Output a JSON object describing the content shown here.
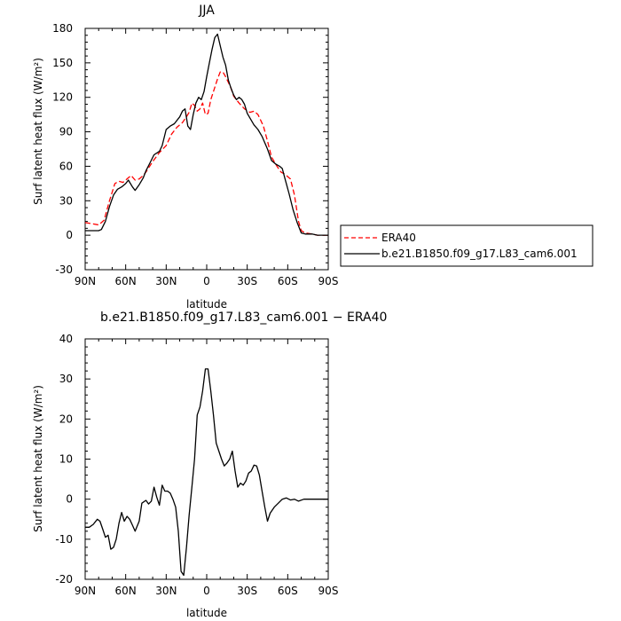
{
  "chart_data": [
    {
      "type": "line",
      "title": "JJA",
      "xlabel": "latitude",
      "ylabel": "Surf latent heat flux (W/m²)",
      "xlim": [
        90,
        -90
      ],
      "ylim": [
        -30,
        180
      ],
      "x_ticks": [
        {
          "value": 90,
          "label": "90N"
        },
        {
          "value": 60,
          "label": "60N"
        },
        {
          "value": 30,
          "label": "30N"
        },
        {
          "value": 0,
          "label": "0"
        },
        {
          "value": -30,
          "label": "30S"
        },
        {
          "value": -60,
          "label": "60S"
        },
        {
          "value": -90,
          "label": "90S"
        }
      ],
      "y_ticks": [
        -30,
        0,
        30,
        60,
        90,
        120,
        150,
        180
      ],
      "legend": "right, outside plot",
      "series": [
        {
          "name": "ERA40",
          "color": "#ff0000",
          "dash": "dashed",
          "points": [
            [
              90,
              11
            ],
            [
              85,
              10
            ],
            [
              80,
              9
            ],
            [
              76,
              13
            ],
            [
              72,
              30
            ],
            [
              68,
              45
            ],
            [
              65,
              47
            ],
            [
              62,
              46
            ],
            [
              58,
              50
            ],
            [
              56,
              52
            ],
            [
              53,
              48
            ],
            [
              50,
              49
            ],
            [
              47,
              52
            ],
            [
              45,
              55
            ],
            [
              40,
              64
            ],
            [
              35,
              72
            ],
            [
              30,
              78
            ],
            [
              26,
              88
            ],
            [
              22,
              94
            ],
            [
              18,
              98
            ],
            [
              15,
              103
            ],
            [
              13,
              107
            ],
            [
              11,
              115
            ],
            [
              9,
              113
            ],
            [
              7,
              108
            ],
            [
              5,
              110
            ],
            [
              3,
              115
            ],
            [
              1,
              105
            ],
            [
              -1,
              106
            ],
            [
              -3,
              118
            ],
            [
              -5,
              125
            ],
            [
              -8,
              136
            ],
            [
              -10,
              142
            ],
            [
              -12,
              142
            ],
            [
              -14,
              138
            ],
            [
              -16,
              133
            ],
            [
              -18,
              128
            ],
            [
              -20,
              121
            ],
            [
              -24,
              115
            ],
            [
              -28,
              110
            ],
            [
              -32,
              107
            ],
            [
              -35,
              108
            ],
            [
              -38,
              105
            ],
            [
              -42,
              95
            ],
            [
              -45,
              82
            ],
            [
              -48,
              68
            ],
            [
              -52,
              60
            ],
            [
              -55,
              55
            ],
            [
              -58,
              53
            ],
            [
              -62,
              49
            ],
            [
              -65,
              35
            ],
            [
              -68,
              12
            ],
            [
              -70,
              4
            ],
            [
              -73,
              2
            ],
            [
              -78,
              1
            ],
            [
              -82,
              0
            ],
            [
              -86,
              0
            ],
            [
              -90,
              0
            ]
          ]
        },
        {
          "name": "b.e21.B1850.f09_g17.L83_cam6.001",
          "color": "#000000",
          "dash": "solid",
          "points": [
            [
              90,
              4
            ],
            [
              85,
              4
            ],
            [
              80,
              4
            ],
            [
              78,
              5
            ],
            [
              75,
              12
            ],
            [
              72,
              25
            ],
            [
              69,
              35
            ],
            [
              66,
              40
            ],
            [
              63,
              42
            ],
            [
              60,
              45
            ],
            [
              58,
              48
            ],
            [
              55,
              42
            ],
            [
              53,
              39
            ],
            [
              50,
              44
            ],
            [
              47,
              50
            ],
            [
              45,
              56
            ],
            [
              42,
              63
            ],
            [
              39,
              70
            ],
            [
              35,
              73
            ],
            [
              33,
              78
            ],
            [
              30,
              92
            ],
            [
              27,
              95
            ],
            [
              24,
              97
            ],
            [
              22,
              100
            ],
            [
              20,
              103
            ],
            [
              18,
              108
            ],
            [
              16,
              110
            ],
            [
              14,
              95
            ],
            [
              12,
              92
            ],
            [
              10,
              105
            ],
            [
              8,
              115
            ],
            [
              6,
              120
            ],
            [
              4,
              118
            ],
            [
              2,
              125
            ],
            [
              0,
              138
            ],
            [
              -2,
              150
            ],
            [
              -4,
              162
            ],
            [
              -6,
              172
            ],
            [
              -8,
              175
            ],
            [
              -10,
              165
            ],
            [
              -12,
              155
            ],
            [
              -14,
              148
            ],
            [
              -16,
              135
            ],
            [
              -18,
              128
            ],
            [
              -20,
              122
            ],
            [
              -22,
              118
            ],
            [
              -24,
              120
            ],
            [
              -26,
              118
            ],
            [
              -28,
              114
            ],
            [
              -30,
              106
            ],
            [
              -35,
              96
            ],
            [
              -38,
              92
            ],
            [
              -41,
              86
            ],
            [
              -45,
              75
            ],
            [
              -48,
              65
            ],
            [
              -51,
              62
            ],
            [
              -54,
              60
            ],
            [
              -56,
              58
            ],
            [
              -58,
              49
            ],
            [
              -61,
              36
            ],
            [
              -64,
              22
            ],
            [
              -67,
              11
            ],
            [
              -70,
              2
            ],
            [
              -73,
              1
            ],
            [
              -78,
              1
            ],
            [
              -82,
              0
            ],
            [
              -86,
              0
            ],
            [
              -90,
              0
            ]
          ]
        }
      ]
    },
    {
      "type": "line",
      "title": "b.e21.B1850.f09_g17.L83_cam6.001 − ERA40",
      "xlabel": "latitude",
      "ylabel": "Surf latent heat flux (W/m²)",
      "xlim": [
        90,
        -90
      ],
      "ylim": [
        -20,
        40
      ],
      "x_ticks": [
        {
          "value": 90,
          "label": "90N"
        },
        {
          "value": 60,
          "label": "60N"
        },
        {
          "value": 30,
          "label": "30N"
        },
        {
          "value": 0,
          "label": "0"
        },
        {
          "value": -30,
          "label": "30S"
        },
        {
          "value": -60,
          "label": "60S"
        },
        {
          "value": -90,
          "label": "90S"
        }
      ],
      "y_ticks": [
        -20,
        -10,
        0,
        10,
        20,
        30,
        40
      ],
      "series": [
        {
          "color": "#000000",
          "dash": "solid",
          "points": [
            [
              90,
              -7
            ],
            [
              87,
              -7
            ],
            [
              84,
              -6.3
            ],
            [
              81,
              -5
            ],
            [
              79,
              -5.5
            ],
            [
              77,
              -7.5
            ],
            [
              75,
              -9.5
            ],
            [
              73,
              -9
            ],
            [
              71,
              -12.5
            ],
            [
              69,
              -12
            ],
            [
              67,
              -10
            ],
            [
              65,
              -6
            ],
            [
              63,
              -3.3
            ],
            [
              61,
              -5.5
            ],
            [
              59,
              -4.3
            ],
            [
              57,
              -5
            ],
            [
              55,
              -6.5
            ],
            [
              53,
              -8
            ],
            [
              50,
              -5.5
            ],
            [
              48,
              -1
            ],
            [
              45,
              -0.3
            ],
            [
              43,
              -1.2
            ],
            [
              41,
              -0.5
            ],
            [
              39,
              3
            ],
            [
              37,
              0.5
            ],
            [
              35,
              -1.5
            ],
            [
              33,
              3.5
            ],
            [
              31,
              2
            ],
            [
              29,
              2
            ],
            [
              27,
              1.5
            ],
            [
              25,
              0
            ],
            [
              23,
              -2
            ],
            [
              21,
              -8
            ],
            [
              19,
              -18
            ],
            [
              17,
              -19
            ],
            [
              15,
              -12
            ],
            [
              13,
              -4
            ],
            [
              11,
              3
            ],
            [
              9,
              10
            ],
            [
              7,
              21
            ],
            [
              5,
              23
            ],
            [
              3,
              27
            ],
            [
              1,
              32.5
            ],
            [
              -1,
              32.5
            ],
            [
              -3,
              27
            ],
            [
              -5,
              21
            ],
            [
              -7,
              14
            ],
            [
              -9,
              12
            ],
            [
              -11,
              10
            ],
            [
              -13,
              8.3
            ],
            [
              -15,
              9
            ],
            [
              -17,
              10
            ],
            [
              -19,
              12
            ],
            [
              -21,
              7
            ],
            [
              -23,
              3
            ],
            [
              -25,
              4
            ],
            [
              -27,
              3.5
            ],
            [
              -29,
              4.5
            ],
            [
              -31,
              6.5
            ],
            [
              -33,
              7
            ],
            [
              -35,
              8.5
            ],
            [
              -37,
              8.3
            ],
            [
              -39,
              6
            ],
            [
              -41,
              2
            ],
            [
              -43,
              -2
            ],
            [
              -45,
              -5.5
            ],
            [
              -47,
              -3.5
            ],
            [
              -50,
              -2
            ],
            [
              -53,
              -1
            ],
            [
              -56,
              0
            ],
            [
              -59,
              0.3
            ],
            [
              -62,
              -0.2
            ],
            [
              -65,
              0
            ],
            [
              -68,
              -0.5
            ],
            [
              -72,
              0
            ],
            [
              -76,
              0
            ],
            [
              -80,
              0
            ],
            [
              -85,
              0
            ],
            [
              -90,
              0
            ]
          ]
        }
      ]
    }
  ]
}
